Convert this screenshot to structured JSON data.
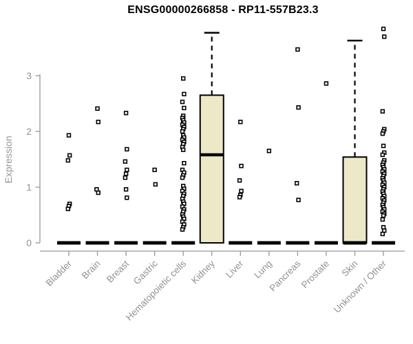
{
  "header": {
    "title": "ENSG00000266858 - RP11-557B23.3"
  },
  "colors": {
    "background": "#ffffff",
    "axis": "#979797",
    "label": "#929292",
    "title": "#000000",
    "box_fill": "#EDE8C8",
    "box_stroke": "#000000",
    "outlier_fill": "#ffffff"
  },
  "chart_data": {
    "type": "box",
    "title": "ENSG00000266858 - RP11-557B23.3",
    "ylabel": "Expression",
    "xlabel": "",
    "yticks": [
      0,
      1,
      2,
      3
    ],
    "ylim": [
      0,
      3.95
    ],
    "grid": false,
    "legend": false,
    "marker": "open-square",
    "categories": [
      "Bladder",
      "Brain",
      "Breast",
      "Gastric",
      "Hematopoietic cells",
      "Kidney",
      "Liver",
      "Lung",
      "Pancreas",
      "Prostate",
      "Skin",
      "Unknown / Other"
    ],
    "boxes": [
      {
        "category": "Bladder",
        "q1": 0,
        "median": 0,
        "q3": 0,
        "whisker_low": 0,
        "whisker_high": 0,
        "outliers": [
          1.93,
          1.57,
          1.48,
          0.7,
          0.66,
          0.61
        ]
      },
      {
        "category": "Brain",
        "q1": 0,
        "median": 0,
        "q3": 0,
        "whisker_low": 0,
        "whisker_high": 0,
        "outliers": [
          2.41,
          2.17,
          0.96,
          0.9
        ]
      },
      {
        "category": "Breast",
        "q1": 0,
        "median": 0,
        "q3": 0,
        "whisker_low": 0,
        "whisker_high": 0,
        "outliers": [
          2.33,
          1.68,
          1.46,
          1.31,
          1.24,
          1.17,
          0.96,
          0.81
        ]
      },
      {
        "category": "Gastric",
        "q1": 0,
        "median": 0,
        "q3": 0,
        "whisker_low": 0,
        "whisker_high": 0,
        "outliers": [
          1.31,
          1.05
        ]
      },
      {
        "category": "Hematopoietic cells",
        "q1": 0,
        "median": 0,
        "q3": 0,
        "whisker_low": 0,
        "whisker_high": 0,
        "outliers": [
          2.95,
          2.67,
          2.53,
          2.42,
          2.28,
          2.24,
          2.2,
          2.16,
          2.12,
          2.08,
          2.04,
          2.0,
          1.93,
          1.89,
          1.85,
          1.81,
          1.77,
          1.72,
          1.67,
          1.43,
          1.31,
          1.26,
          1.21,
          1.17,
          1.02,
          0.97,
          0.93,
          0.88,
          0.84,
          0.79,
          0.74,
          0.7,
          0.65,
          0.6,
          0.56,
          0.51,
          0.47,
          0.43,
          0.38,
          0.33,
          0.28,
          0.24
        ]
      },
      {
        "category": "Kidney",
        "q1": 0,
        "median": 1.58,
        "q3": 2.65,
        "whisker_low": 0,
        "whisker_high": 3.77,
        "outliers": []
      },
      {
        "category": "Liver",
        "q1": 0,
        "median": 0,
        "q3": 0,
        "whisker_low": 0,
        "whisker_high": 0,
        "outliers": [
          2.17,
          1.38,
          1.12,
          0.93,
          0.86,
          0.82
        ]
      },
      {
        "category": "Lung",
        "q1": 0,
        "median": 0,
        "q3": 0,
        "whisker_low": 0,
        "whisker_high": 0,
        "outliers": [
          1.65
        ]
      },
      {
        "category": "Pancreas",
        "q1": 0,
        "median": 0,
        "q3": 0,
        "whisker_low": 0,
        "whisker_high": 0,
        "outliers": [
          3.47,
          2.43,
          1.07,
          0.77
        ]
      },
      {
        "category": "Prostate",
        "q1": 0,
        "median": 0,
        "q3": 0,
        "whisker_low": 0,
        "whisker_high": 0,
        "outliers": [
          2.86
        ]
      },
      {
        "category": "Skin",
        "q1": 0,
        "median": 0,
        "q3": 1.54,
        "whisker_low": 0,
        "whisker_high": 3.63,
        "outliers": []
      },
      {
        "category": "Unknown / Other",
        "q1": 0,
        "median": 0,
        "q3": 0,
        "whisker_low": 0,
        "whisker_high": 0,
        "outliers": [
          3.84,
          3.7,
          2.36,
          2.04,
          2.0,
          1.96,
          1.74,
          1.62,
          1.58,
          1.48,
          1.44,
          1.4,
          1.36,
          1.32,
          1.28,
          1.24,
          1.2,
          1.16,
          1.12,
          1.08,
          1.04,
          1.0,
          0.96,
          0.92,
          0.88,
          0.84,
          0.8,
          0.76,
          0.72,
          0.68,
          0.64,
          0.6,
          0.56,
          0.52,
          0.49,
          0.42,
          0.28,
          0.22,
          0.16
        ]
      }
    ]
  }
}
